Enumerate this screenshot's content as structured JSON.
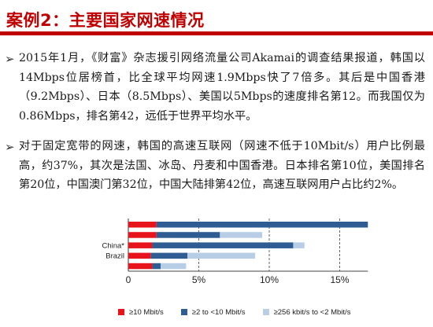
{
  "header": {
    "title": "案例2：主要国家网速情况"
  },
  "bullets": [
    {
      "text": "2015年1月，《财富》杂志援引网络流量公司Akamai的调查结果报道，韩国以14Mbps位居榜首，比全球平均网速1.9Mbps快了7倍多。其后是中国香港（9.2Mbps）、日本（8.5Mbps）、美国以5Mbps的速度排名第12。而我国仅为0.86Mbps，排名第42，远低于世界平均水平。"
    },
    {
      "text": "对于固定宽带的网速，韩国的高速互联网（网速不低于10Mbit/s）用户比例最高，约37%，其次是法国、冰岛、丹麦和中国香港。日本排名第10位，美国排名第20位，中国澳门第32位，中国大陆排第42位，高速互联网用户占比约2%。"
    }
  ],
  "chart_data": {
    "type": "bar",
    "orientation": "horizontal",
    "stacked": true,
    "categories": [
      "",
      "",
      "China*",
      "Brazil",
      ""
    ],
    "x_tick_labels": [
      "0",
      "5%",
      "10%",
      "15%"
    ],
    "xlim": [
      0,
      17
    ],
    "series": [
      {
        "name": "≥10 Mbit/s",
        "color": "#e8141b",
        "values": [
          2.0,
          2.0,
          1.7,
          1.6,
          1.7
        ]
      },
      {
        "name": "≥2 to <10 Mbit/s",
        "color": "#2e5c93",
        "values": [
          15.0,
          4.5,
          10.0,
          2.6,
          0.6
        ]
      },
      {
        "name": "≥256 kbit/s to <2 Mbit/s",
        "color": "#b8cee6",
        "values": [
          0.0,
          3.0,
          0.8,
          4.8,
          1.8
        ]
      }
    ],
    "grid": true,
    "legend_position": "bottom"
  }
}
